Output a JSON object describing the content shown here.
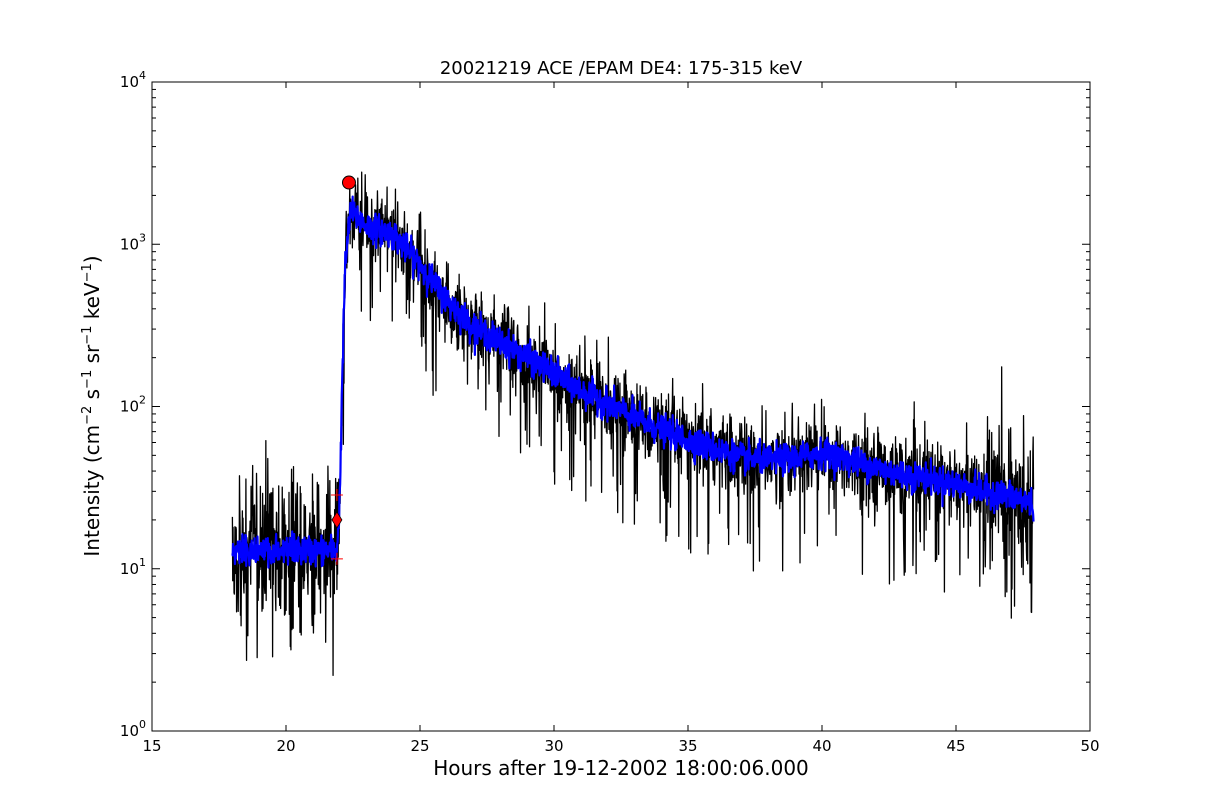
{
  "chart_data": {
    "type": "line",
    "title": "20021219 ACE /EPAM DE4: 175-315 keV",
    "xlabel": "Hours after 19-12-2002 18:00:06.000",
    "ylabel_parts": {
      "prefix": "Intensity (cm",
      "exp1": "−2",
      "s": " s",
      "exp2": "−1",
      "sr": " sr",
      "exp3": "−1",
      "kev": " keV",
      "exp4": "−1",
      "suffix": ")"
    },
    "xlim": [
      15,
      50
    ],
    "ylim": [
      1,
      10000
    ],
    "yscale": "log",
    "xticks": [
      15,
      20,
      25,
      30,
      35,
      40,
      45,
      50
    ],
    "xtick_labels": [
      "15",
      "20",
      "25",
      "30",
      "35",
      "40",
      "45",
      "50"
    ],
    "yticks": [
      1,
      10,
      100,
      1000,
      10000
    ],
    "ytick_labels": [
      {
        "base": "10",
        "exp": "0"
      },
      {
        "base": "10",
        "exp": "1"
      },
      {
        "base": "10",
        "exp": "2"
      },
      {
        "base": "10",
        "exp": "3"
      },
      {
        "base": "10",
        "exp": "4"
      }
    ],
    "grid": false,
    "series": [
      {
        "style": "raw",
        "color": "#000000",
        "x": [
          18.0,
          19.0,
          20.0,
          21.0,
          21.9,
          22.0,
          22.1,
          22.2,
          22.4,
          23.0,
          24.0,
          25.0,
          26.0,
          27.0,
          28.0,
          29.0,
          30.0,
          31.0,
          32.0,
          33.0,
          34.0,
          35.0,
          36.0,
          37.0,
          38.0,
          39.0,
          40.0,
          41.0,
          42.0,
          43.0,
          44.0,
          45.0,
          46.0,
          47.0,
          47.9
        ],
        "y": [
          13,
          13,
          13,
          13,
          13,
          25,
          150,
          700,
          1600,
          1300,
          1150,
          750,
          450,
          310,
          250,
          200,
          160,
          125,
          105,
          85,
          72,
          62,
          55,
          48,
          47,
          48,
          52,
          47,
          42,
          38,
          36,
          33,
          30,
          28,
          25
        ]
      },
      {
        "style": "smoothed",
        "color": "#0000ff",
        "x": [
          18.0,
          19.0,
          20.0,
          21.0,
          21.9,
          22.0,
          22.1,
          22.2,
          22.4,
          23.0,
          24.0,
          25.0,
          26.0,
          27.0,
          28.0,
          29.0,
          30.0,
          31.0,
          32.0,
          33.0,
          34.0,
          35.0,
          36.0,
          37.0,
          38.0,
          39.0,
          40.0,
          41.0,
          42.0,
          43.0,
          44.0,
          45.0,
          46.0,
          47.0,
          47.9
        ],
        "y": [
          13,
          13,
          13,
          13,
          13,
          25,
          150,
          700,
          1600,
          1300,
          1150,
          750,
          450,
          310,
          250,
          200,
          160,
          125,
          105,
          85,
          72,
          62,
          55,
          48,
          47,
          48,
          52,
          47,
          42,
          38,
          36,
          33,
          30,
          28,
          25
        ]
      }
    ],
    "markers": [
      {
        "kind": "circle",
        "color": "#ff0000",
        "x": 22.35,
        "y": 2400
      },
      {
        "kind": "diamond",
        "color": "#ff0000",
        "x": 21.9,
        "y": 20
      },
      {
        "kind": "plus",
        "color": "#ff0000",
        "x": 21.9,
        "y": 28.5
      },
      {
        "kind": "plus",
        "color": "#ff0000",
        "x": 21.9,
        "y": 11.5
      }
    ]
  }
}
